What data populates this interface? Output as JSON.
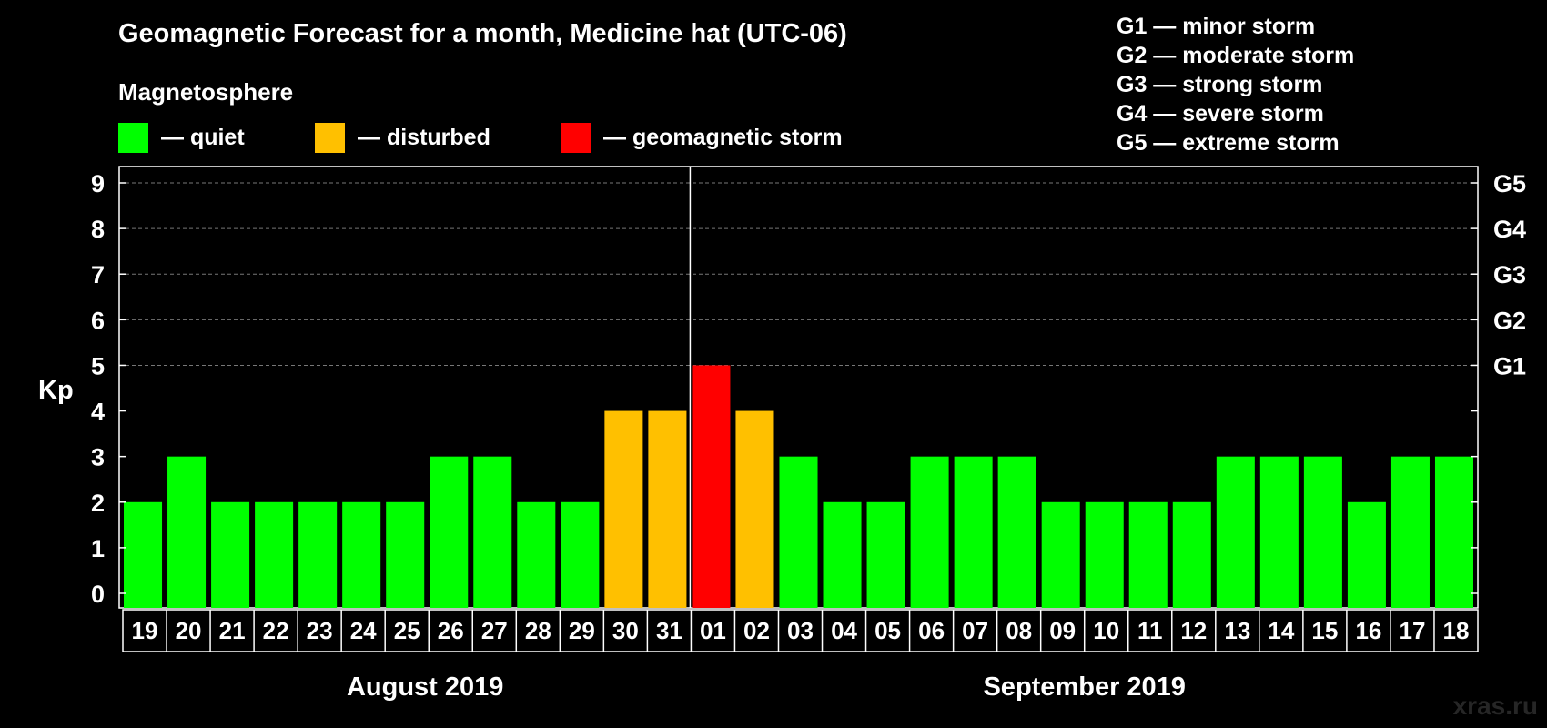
{
  "title": "Geomagnetic Forecast for a month, Medicine hat (UTC-06)",
  "subtitle": "Magnetosphere",
  "legend": [
    {
      "label": "— quiet",
      "color": "#00ff00"
    },
    {
      "label": "— disturbed",
      "color": "#ffc000"
    },
    {
      "label": "— geomagnetic storm",
      "color": "#ff0000"
    }
  ],
  "g_legend": [
    "G1 — minor storm",
    "G2 — moderate storm",
    "G3 — strong storm",
    "G4 — severe storm",
    "G5 — extreme storm"
  ],
  "watermark": "xras.ru",
  "chart_data": {
    "type": "bar",
    "title": "Geomagnetic Forecast for a month, Medicine hat (UTC-06)",
    "ylabel": "Kp",
    "ylim": [
      0,
      9
    ],
    "yticks": [
      0,
      1,
      2,
      3,
      4,
      5,
      6,
      7,
      8,
      9
    ],
    "right_ticks": [
      {
        "value": 5,
        "label": "G1"
      },
      {
        "value": 6,
        "label": "G2"
      },
      {
        "value": 7,
        "label": "G3"
      },
      {
        "value": 8,
        "label": "G4"
      },
      {
        "value": 9,
        "label": "G5"
      }
    ],
    "grid": "dashed horizontal",
    "categories": [
      "19",
      "20",
      "21",
      "22",
      "23",
      "24",
      "25",
      "26",
      "27",
      "28",
      "29",
      "30",
      "31",
      "01",
      "02",
      "03",
      "04",
      "05",
      "06",
      "07",
      "08",
      "09",
      "10",
      "11",
      "12",
      "13",
      "14",
      "15",
      "16",
      "17",
      "18"
    ],
    "values": [
      2,
      3,
      2,
      2,
      2,
      2,
      2,
      3,
      3,
      2,
      2,
      4,
      4,
      5,
      4,
      3,
      2,
      2,
      3,
      3,
      3,
      2,
      2,
      2,
      2,
      3,
      3,
      3,
      2,
      3,
      3
    ],
    "status": [
      "quiet",
      "quiet",
      "quiet",
      "quiet",
      "quiet",
      "quiet",
      "quiet",
      "quiet",
      "quiet",
      "quiet",
      "quiet",
      "disturbed",
      "disturbed",
      "storm",
      "disturbed",
      "quiet",
      "quiet",
      "quiet",
      "quiet",
      "quiet",
      "quiet",
      "quiet",
      "quiet",
      "quiet",
      "quiet",
      "quiet",
      "quiet",
      "quiet",
      "quiet",
      "quiet",
      "quiet"
    ],
    "colors": {
      "quiet": "#00ff00",
      "disturbed": "#ffc000",
      "storm": "#ff0000"
    },
    "months": [
      {
        "label": "August 2019",
        "start": 0,
        "end": 12
      },
      {
        "label": "September 2019",
        "start": 13,
        "end": 30
      }
    ]
  }
}
